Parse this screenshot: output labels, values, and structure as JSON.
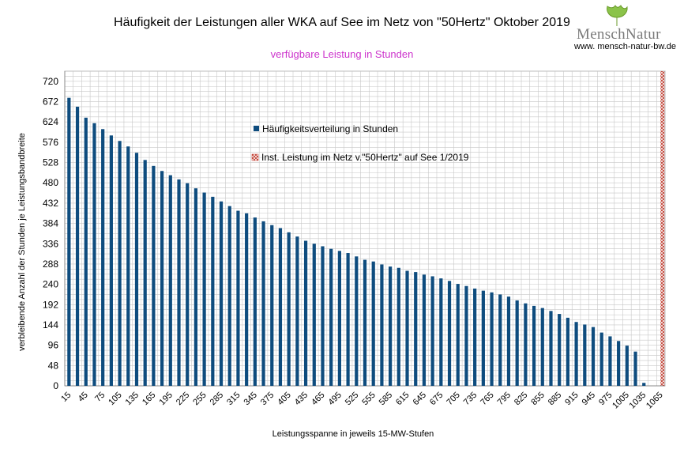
{
  "header": {
    "title": "Häufigkeit der Leistungen aller WKA auf See im Netz von \"50Hertz\" Oktober 2019",
    "subtitle": "verfügbare Leistung in Stunden"
  },
  "logo": {
    "name": "MenschNatur",
    "url": "www. mensch-natur-bw.de"
  },
  "chart_data": {
    "type": "bar",
    "xlabel": "Leistungsspanne in jeweils 15-MW-Stufen",
    "ylabel": "verbleibende Anzahl der Stunden je Leistungsbandbreite",
    "ylim": [
      0,
      744
    ],
    "yticks": [
      0,
      48,
      96,
      144,
      192,
      240,
      288,
      336,
      384,
      432,
      480,
      528,
      576,
      624,
      672,
      720
    ],
    "xticks": [
      15,
      45,
      75,
      105,
      135,
      165,
      195,
      225,
      255,
      285,
      315,
      345,
      375,
      405,
      435,
      465,
      495,
      525,
      555,
      585,
      615,
      645,
      675,
      705,
      735,
      765,
      795,
      825,
      855,
      885,
      915,
      945,
      975,
      1005,
      1035,
      1065
    ],
    "grid": true,
    "legend_position": "upper-center",
    "colors": {
      "bars": "#0e4c7e",
      "installed": "#c0392b",
      "grid": "#c8c8c8"
    },
    "categories": [
      15,
      30,
      45,
      60,
      75,
      90,
      105,
      120,
      135,
      150,
      165,
      180,
      195,
      210,
      225,
      240,
      255,
      270,
      285,
      300,
      315,
      330,
      345,
      360,
      375,
      390,
      405,
      420,
      435,
      450,
      465,
      480,
      495,
      510,
      525,
      540,
      555,
      570,
      585,
      600,
      615,
      630,
      645,
      660,
      675,
      690,
      705,
      720,
      735,
      750,
      765,
      780,
      795,
      810,
      825,
      840,
      855,
      870,
      885,
      900,
      915,
      930,
      945,
      960,
      975,
      990,
      1005,
      1020,
      1035,
      1050,
      1065
    ],
    "series": [
      {
        "name": "Häufigkeitsverteilung in Stunden",
        "values": [
          681,
          660,
          634,
          621,
          607,
          592,
          579,
          566,
          551,
          534,
          520,
          508,
          498,
          488,
          479,
          467,
          457,
          447,
          436,
          425,
          414,
          408,
          398,
          389,
          380,
          373,
          363,
          353,
          343,
          336,
          330,
          324,
          319,
          314,
          306,
          298,
          294,
          287,
          282,
          279,
          272,
          269,
          263,
          259,
          254,
          248,
          241,
          236,
          230,
          225,
          221,
          216,
          211,
          202,
          195,
          189,
          184,
          177,
          170,
          161,
          151,
          145,
          139,
          126,
          117,
          106,
          95,
          81,
          7,
          0,
          0
        ]
      },
      {
        "name": "Inst. Leistung im Netz v.\"50Hertz\" auf See 1/2019",
        "category": 1068,
        "value": 744
      }
    ]
  }
}
